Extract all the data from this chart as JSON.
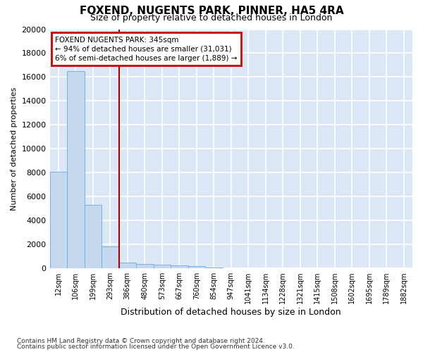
{
  "title": "FOXEND, NUGENTS PARK, PINNER, HA5 4RA",
  "subtitle": "Size of property relative to detached houses in London",
  "xlabel": "Distribution of detached houses by size in London",
  "ylabel": "Number of detached properties",
  "bar_color": "#c5d8ee",
  "bar_edge_color": "#6aabe0",
  "categories": [
    "12sqm",
    "106sqm",
    "199sqm",
    "293sqm",
    "386sqm",
    "480sqm",
    "573sqm",
    "667sqm",
    "760sqm",
    "854sqm",
    "947sqm",
    "1041sqm",
    "1134sqm",
    "1228sqm",
    "1321sqm",
    "1415sqm",
    "1508sqm",
    "1602sqm",
    "1695sqm",
    "1789sqm",
    "1882sqm"
  ],
  "values": [
    8100,
    16500,
    5300,
    1850,
    480,
    350,
    280,
    220,
    180,
    80,
    30,
    0,
    0,
    0,
    0,
    0,
    0,
    0,
    0,
    0,
    0
  ],
  "ylim": [
    0,
    20000
  ],
  "yticks": [
    0,
    2000,
    4000,
    6000,
    8000,
    10000,
    12000,
    14000,
    16000,
    18000,
    20000
  ],
  "annotation_text": "FOXEND NUGENTS PARK: 345sqm\n← 94% of detached houses are smaller (31,031)\n6% of semi-detached houses are larger (1,889) →",
  "annotation_box_edgecolor": "#cc0000",
  "property_line_x": 3.5,
  "property_line_color": "#aa0000",
  "footer_line1": "Contains HM Land Registry data © Crown copyright and database right 2024.",
  "footer_line2": "Contains public sector information licensed under the Open Government Licence v3.0.",
  "background_color": "#dce8f5",
  "grid_color": "#ffffff",
  "title_fontsize": 11,
  "subtitle_fontsize": 9,
  "ylabel_fontsize": 8,
  "xlabel_fontsize": 9,
  "tick_fontsize": 7,
  "annotation_fontsize": 7.5,
  "footer_fontsize": 6.5
}
